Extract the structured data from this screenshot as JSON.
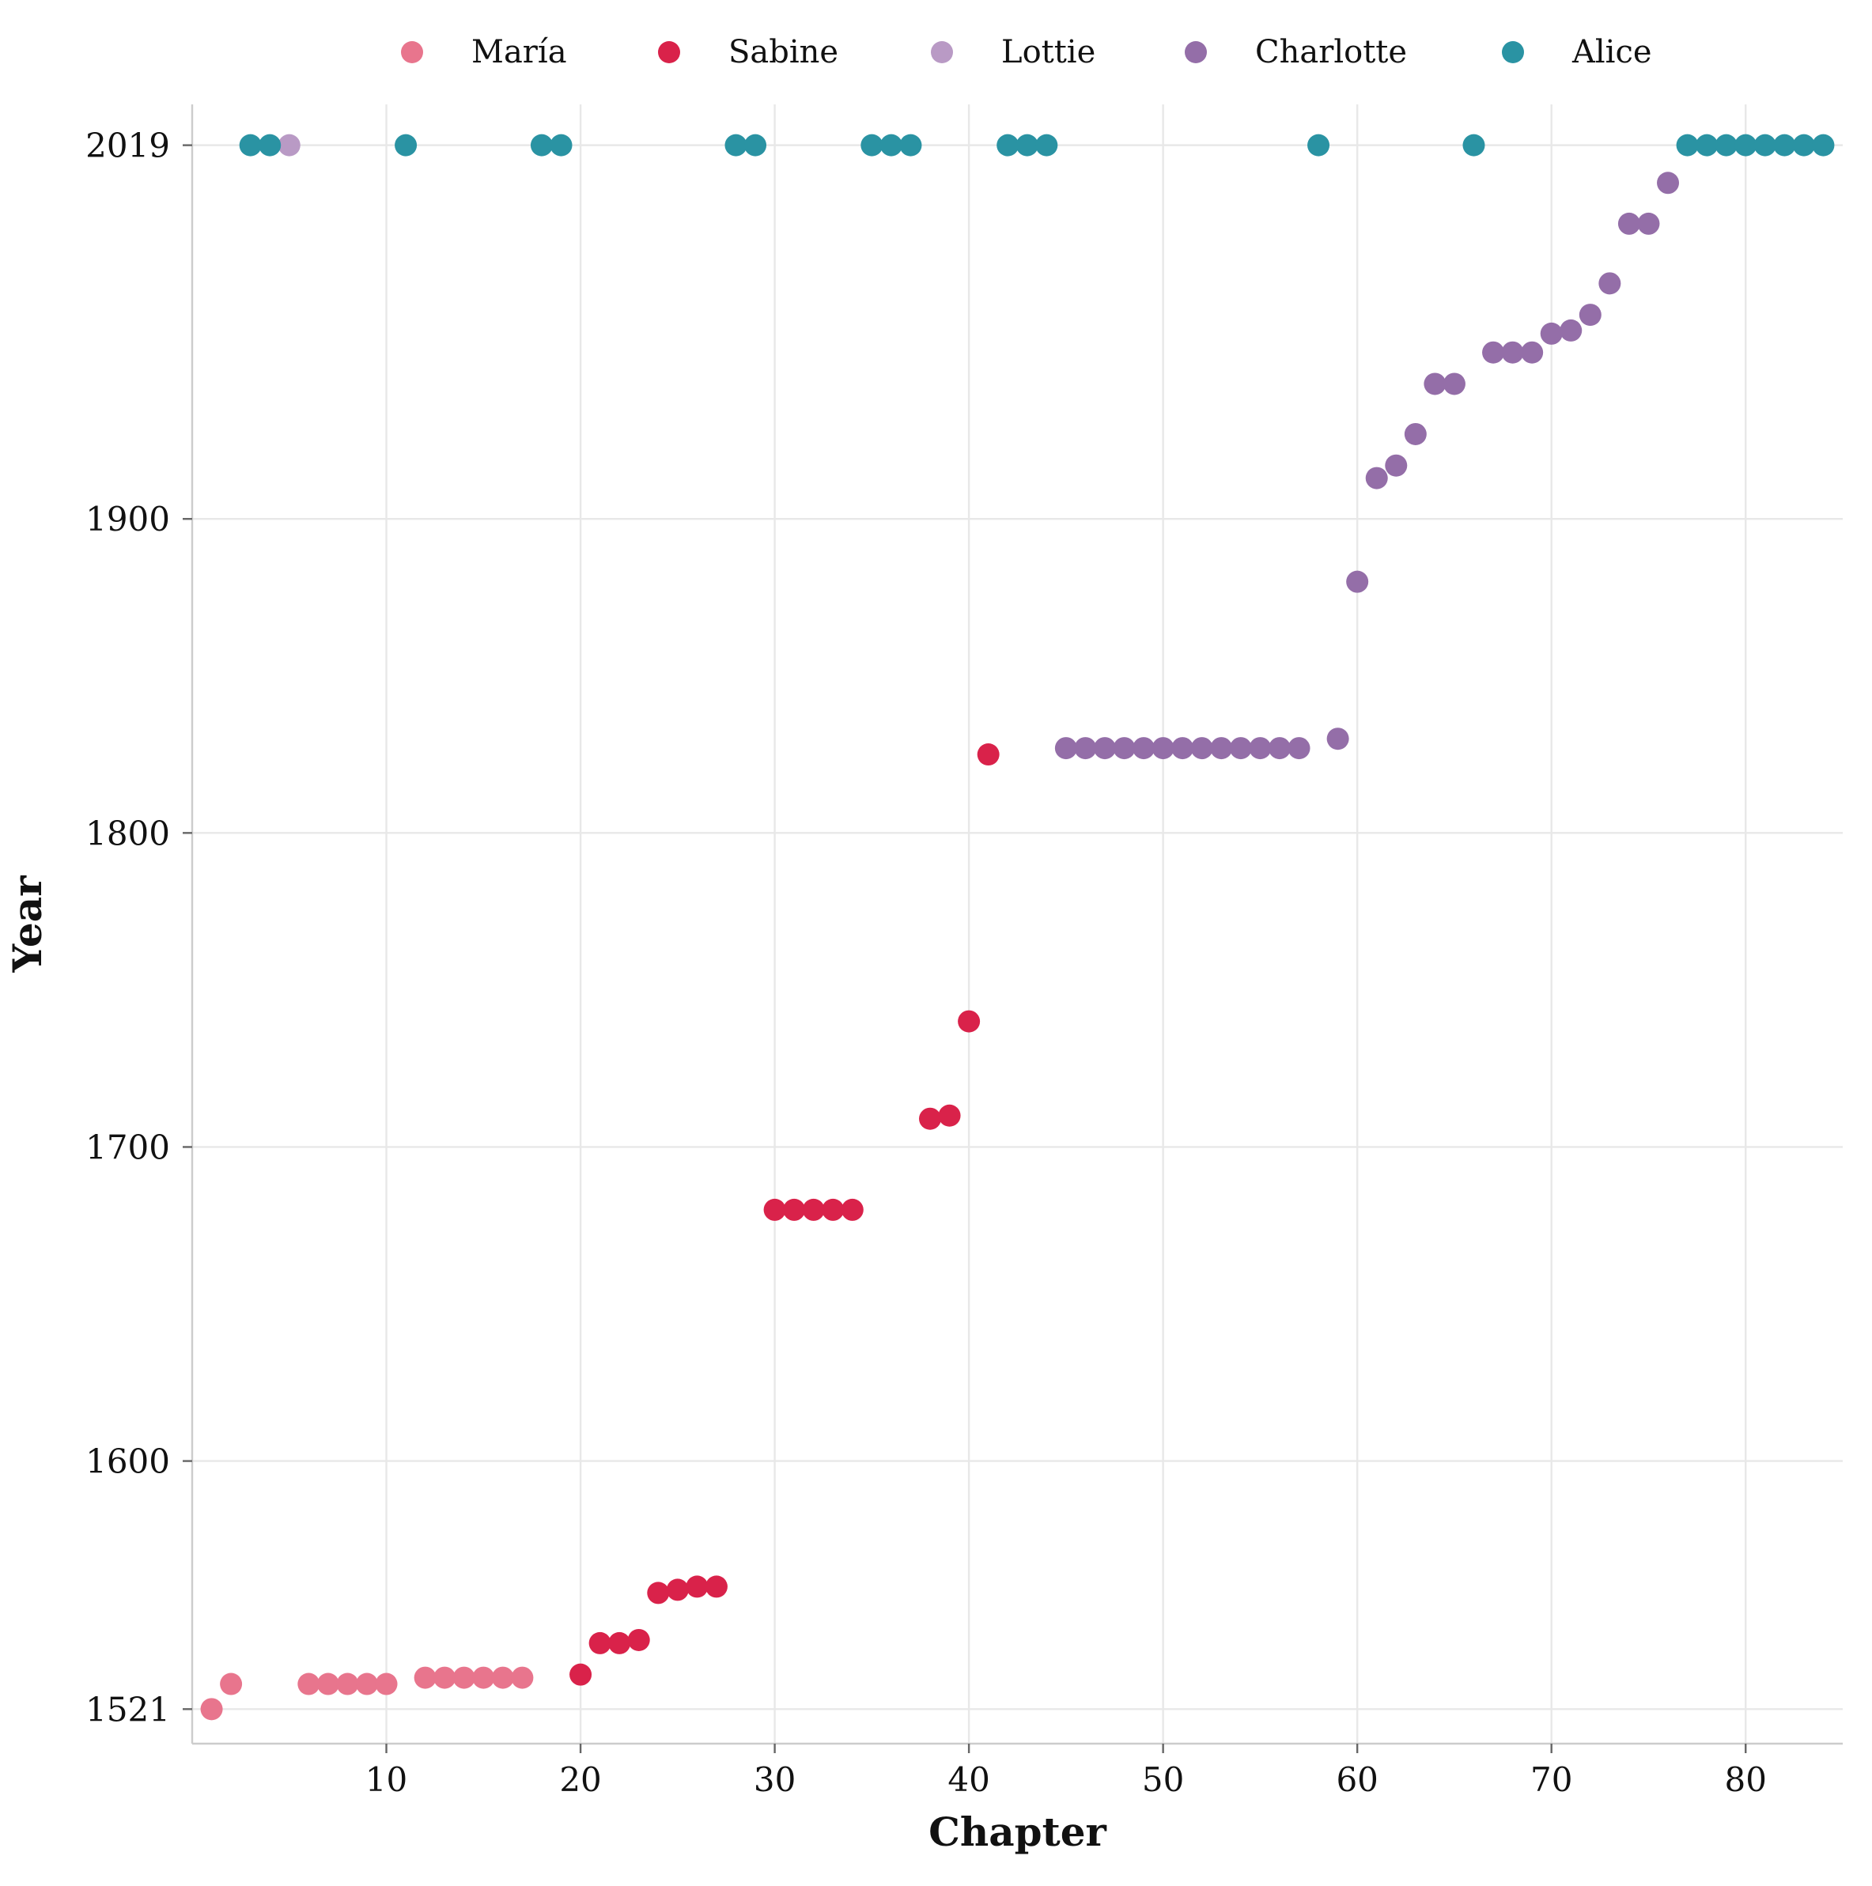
{
  "chart_data": {
    "type": "scatter",
    "title": "",
    "xlabel": "Chapter",
    "ylabel": "Year",
    "xlim": [
      0,
      85
    ],
    "ylim": [
      1510,
      2032
    ],
    "xticks": [
      10,
      20,
      30,
      40,
      50,
      60,
      70,
      80
    ],
    "yticks": [
      1521,
      1600,
      1700,
      1800,
      1900,
      2019
    ],
    "grid": true,
    "legend_position": "top",
    "series": [
      {
        "name": "María",
        "color": "#e8758d",
        "points": [
          [
            1,
            1521
          ],
          [
            2,
            1529
          ],
          [
            6,
            1529
          ],
          [
            7,
            1529
          ],
          [
            8,
            1529
          ],
          [
            9,
            1529
          ],
          [
            10,
            1529
          ],
          [
            12,
            1531
          ],
          [
            13,
            1531
          ],
          [
            14,
            1531
          ],
          [
            15,
            1531
          ],
          [
            16,
            1531
          ],
          [
            17,
            1531
          ]
        ]
      },
      {
        "name": "Sabine",
        "color": "#d9224a",
        "points": [
          [
            20,
            1532
          ],
          [
            21,
            1542
          ],
          [
            22,
            1542
          ],
          [
            23,
            1543
          ],
          [
            24,
            1558
          ],
          [
            25,
            1559
          ],
          [
            26,
            1560
          ],
          [
            27,
            1560
          ],
          [
            30,
            1680
          ],
          [
            31,
            1680
          ],
          [
            32,
            1680
          ],
          [
            33,
            1680
          ],
          [
            34,
            1680
          ],
          [
            38,
            1709
          ],
          [
            39,
            1710
          ],
          [
            40,
            1740
          ],
          [
            41,
            1825
          ]
        ]
      },
      {
        "name": "Lottie",
        "color": "#b99ac5",
        "points": [
          [
            5,
            2019
          ]
        ]
      },
      {
        "name": "Charlotte",
        "color": "#946ea8",
        "points": [
          [
            45,
            1827
          ],
          [
            46,
            1827
          ],
          [
            47,
            1827
          ],
          [
            48,
            1827
          ],
          [
            49,
            1827
          ],
          [
            50,
            1827
          ],
          [
            51,
            1827
          ],
          [
            52,
            1827
          ],
          [
            53,
            1827
          ],
          [
            54,
            1827
          ],
          [
            55,
            1827
          ],
          [
            56,
            1827
          ],
          [
            57,
            1827
          ],
          [
            59,
            1830
          ],
          [
            60,
            1880
          ],
          [
            61,
            1913
          ],
          [
            62,
            1917
          ],
          [
            63,
            1927
          ],
          [
            64,
            1943
          ],
          [
            65,
            1943
          ],
          [
            67,
            1953
          ],
          [
            68,
            1953
          ],
          [
            69,
            1953
          ],
          [
            70,
            1959
          ],
          [
            71,
            1960
          ],
          [
            72,
            1965
          ],
          [
            73,
            1975
          ],
          [
            74,
            1994
          ],
          [
            75,
            1994
          ],
          [
            76,
            2007
          ]
        ]
      },
      {
        "name": "Alice",
        "color": "#2a93a3",
        "points": [
          [
            3,
            2019
          ],
          [
            4,
            2019
          ],
          [
            11,
            2019
          ],
          [
            18,
            2019
          ],
          [
            19,
            2019
          ],
          [
            28,
            2019
          ],
          [
            29,
            2019
          ],
          [
            35,
            2019
          ],
          [
            36,
            2019
          ],
          [
            37,
            2019
          ],
          [
            42,
            2019
          ],
          [
            43,
            2019
          ],
          [
            44,
            2019
          ],
          [
            58,
            2019
          ],
          [
            66,
            2019
          ],
          [
            77,
            2019
          ],
          [
            78,
            2019
          ],
          [
            79,
            2019
          ],
          [
            80,
            2019
          ],
          [
            81,
            2019
          ],
          [
            82,
            2019
          ],
          [
            83,
            2019
          ],
          [
            84,
            2019
          ]
        ]
      }
    ]
  }
}
